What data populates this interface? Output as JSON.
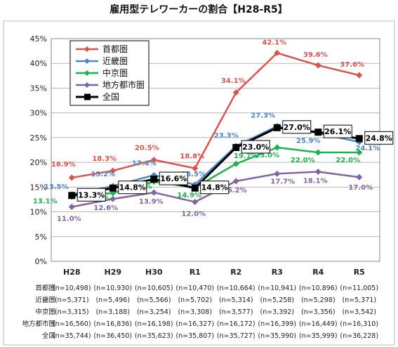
{
  "chart_data": {
    "type": "line",
    "title": "雇用型テレワーカーの割合【H28-R5】",
    "categories": [
      "H28",
      "H29",
      "H30",
      "R1",
      "R2",
      "R3",
      "R4",
      "R5"
    ],
    "ylim": [
      0,
      45
    ],
    "yticks": [
      "0%",
      "5%",
      "10%",
      "15%",
      "20%",
      "25%",
      "30%",
      "35%",
      "40%",
      "45%"
    ],
    "grid": true,
    "legend_position": "top-left",
    "series": [
      {
        "name": "首都圏",
        "color": "#d9534f",
        "marker": "diamond",
        "values": [
          16.9,
          18.3,
          20.5,
          18.8,
          34.1,
          42.1,
          39.6,
          37.6
        ],
        "labels": [
          "16.9%",
          "18.3%",
          "20.5%",
          "18.8%",
          "34.1%",
          "42.1%",
          "39.6%",
          "37.6%"
        ]
      },
      {
        "name": "近畿圏",
        "color": "#4a86c8",
        "marker": "diamond",
        "values": [
          13.5,
          15.2,
          17.4,
          15.5,
          23.3,
          27.3,
          25.9,
          24.1
        ],
        "labels": [
          "13.5%",
          "15.2%",
          "17.4%",
          "15.5%",
          "23.3%",
          "27.3%",
          "25.9%",
          "24.1%"
        ]
      },
      {
        "name": "中京圏",
        "color": "#1fb050",
        "marker": "diamond",
        "values": [
          13.1,
          13.8,
          16.1,
          14.9,
          19.7,
          23.0,
          22.0,
          22.0
        ],
        "labels": [
          "13.1%",
          "13.8%",
          "16.1%",
          "14.9%",
          "19.7%",
          "23.0%",
          "22.0%",
          "22.0%"
        ]
      },
      {
        "name": "地方都市圏",
        "color": "#8064a2",
        "marker": "diamond",
        "values": [
          11.0,
          12.6,
          13.9,
          12.0,
          16.2,
          17.7,
          18.1,
          17.0
        ],
        "labels": [
          "11.0%",
          "12.6%",
          "13.9%",
          "12.0%",
          "16.2%",
          "17.7%",
          "18.1%",
          "17.0%"
        ]
      },
      {
        "name": "全国",
        "color": "#000000",
        "marker": "square",
        "values": [
          13.3,
          14.8,
          16.6,
          14.8,
          23.0,
          27.0,
          26.1,
          24.8
        ],
        "labels": [
          "13.3%",
          "14.8%",
          "16.6%",
          "14.8%",
          "23.0%",
          "27.0%",
          "26.1%",
          "24.8%"
        ]
      }
    ],
    "sample_sizes": [
      {
        "name": "首都圏",
        "values": [
          "(n=10,498)",
          "(n=10,930)",
          "(n=10,605)",
          "(n=10,470)",
          "(n=10,664)",
          "(n=10,941)",
          "(n=10,896)",
          "(n=11,005)"
        ]
      },
      {
        "name": "近畿圏",
        "values": [
          "(n=5,371)",
          "(n=5,496)",
          "(n=5,566)",
          "(n=5,702)",
          "(n=5,314)",
          "(n=5,258)",
          "(n=5,298)",
          "(n=5,371)"
        ]
      },
      {
        "name": "中京圏",
        "values": [
          "(n=3,315)",
          "(n=3,188)",
          "(n=3,254)",
          "(n=3,308)",
          "(n=3,577)",
          "(n=3,392)",
          "(n=3,356)",
          "(n=3,542)"
        ]
      },
      {
        "name": "地方都市圏",
        "values": [
          "(n=16,560)",
          "(n=16,836)",
          "(n=16,198)",
          "(n=16,327)",
          "(n=16,172)",
          "(n=16,399)",
          "(n=16,449)",
          "(n=16,310)"
        ]
      },
      {
        "name": "全国",
        "values": [
          "(n=35,744)",
          "(n=36,450)",
          "(n=35,623)",
          "(n=35,807)",
          "(n=35,727)",
          "(n=35,990)",
          "(n=35,999)",
          "(n=36,228)"
        ]
      }
    ]
  }
}
